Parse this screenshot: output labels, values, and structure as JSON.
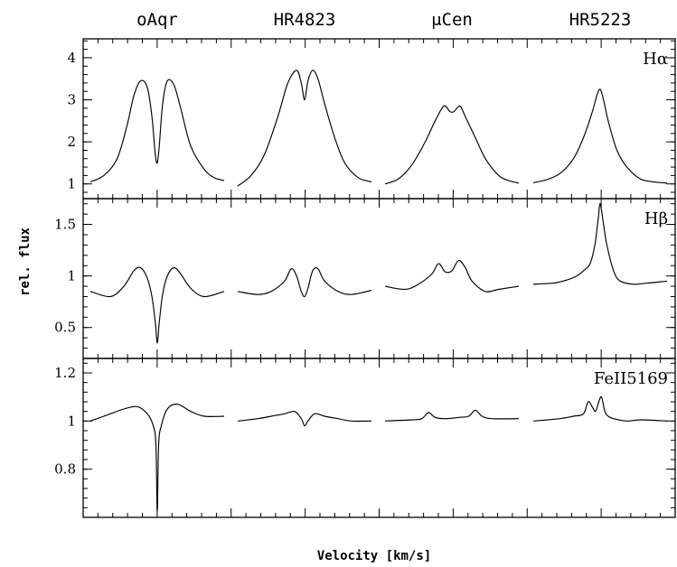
{
  "chart_data": {
    "type": "line",
    "stars": [
      "oAqr",
      "HR4823",
      "μCen",
      "HR5223"
    ],
    "xlabel": "Velocity [km/s]",
    "ylabel": "rel. flux",
    "panels": [
      {
        "line": "Hα",
        "ylim": [
          0.65,
          4.45
        ],
        "yticks": [
          1,
          2,
          3,
          4
        ],
        "tick_labels": [
          "1",
          "2",
          "3",
          "4"
        ],
        "series": [
          {
            "star": "oAqr",
            "x": [
              -1.0,
              -0.8,
              -0.6,
              -0.45,
              -0.35,
              -0.25,
              -0.15,
              -0.08,
              -0.03,
              0.0,
              0.03,
              0.08,
              0.15,
              0.25,
              0.35,
              0.5,
              0.7,
              0.85,
              1.0
            ],
            "y": [
              1.05,
              1.2,
              1.6,
              2.4,
              3.1,
              3.45,
              3.3,
              2.6,
              1.7,
              1.5,
              1.9,
              2.9,
              3.45,
              3.35,
              2.8,
              1.9,
              1.35,
              1.15,
              1.08
            ]
          },
          {
            "star": "HR4823",
            "x": [
              -1.0,
              -0.8,
              -0.6,
              -0.4,
              -0.25,
              -0.12,
              -0.05,
              0.0,
              0.05,
              0.12,
              0.2,
              0.3,
              0.45,
              0.6,
              0.8,
              1.0
            ],
            "y": [
              0.95,
              1.2,
              1.7,
              2.6,
              3.4,
              3.7,
              3.4,
              3.0,
              3.45,
              3.7,
              3.5,
              2.9,
              2.1,
              1.5,
              1.15,
              1.05
            ]
          },
          {
            "star": "μCen",
            "x": [
              -1.0,
              -0.8,
              -0.6,
              -0.4,
              -0.25,
              -0.12,
              -0.03,
              0.03,
              0.12,
              0.2,
              0.35,
              0.5,
              0.7,
              0.85,
              1.0
            ],
            "y": [
              1.0,
              1.12,
              1.45,
              2.0,
              2.5,
              2.85,
              2.72,
              2.72,
              2.85,
              2.6,
              2.1,
              1.6,
              1.2,
              1.08,
              1.02
            ]
          },
          {
            "star": "HR5223",
            "x": [
              -1.0,
              -0.8,
              -0.6,
              -0.4,
              -0.25,
              -0.12,
              -0.05,
              0.0,
              0.05,
              0.12,
              0.25,
              0.4,
              0.6,
              0.8,
              1.0
            ],
            "y": [
              1.03,
              1.1,
              1.25,
              1.6,
              2.1,
              2.7,
              3.1,
              3.25,
              3.0,
              2.5,
              1.8,
              1.4,
              1.12,
              1.05,
              1.02
            ]
          }
        ]
      },
      {
        "line": "Hβ",
        "ylim": [
          0.2,
          1.75
        ],
        "yticks": [
          0.5,
          1,
          1.5
        ],
        "tick_labels": [
          "0.5",
          "1",
          "1.5"
        ],
        "series": [
          {
            "star": "oAqr",
            "x": [
              -1.0,
              -0.7,
              -0.5,
              -0.35,
              -0.25,
              -0.15,
              -0.08,
              -0.03,
              0.0,
              0.03,
              0.08,
              0.15,
              0.25,
              0.35,
              0.5,
              0.7,
              1.0
            ],
            "y": [
              0.85,
              0.8,
              0.9,
              1.05,
              1.08,
              0.98,
              0.8,
              0.55,
              0.35,
              0.55,
              0.82,
              1.0,
              1.08,
              1.02,
              0.88,
              0.8,
              0.85
            ]
          },
          {
            "star": "HR4823",
            "x": [
              -1.0,
              -0.7,
              -0.5,
              -0.3,
              -0.2,
              -0.12,
              -0.05,
              0.0,
              0.05,
              0.12,
              0.2,
              0.3,
              0.5,
              0.7,
              1.0
            ],
            "y": [
              0.85,
              0.82,
              0.85,
              0.95,
              1.07,
              1.0,
              0.85,
              0.8,
              0.88,
              1.05,
              1.07,
              0.95,
              0.85,
              0.82,
              0.86
            ]
          },
          {
            "star": "μCen",
            "x": [
              -1.0,
              -0.7,
              -0.5,
              -0.3,
              -0.2,
              -0.1,
              0.0,
              0.1,
              0.2,
              0.3,
              0.5,
              0.7,
              1.0
            ],
            "y": [
              0.9,
              0.87,
              0.92,
              1.02,
              1.12,
              1.04,
              1.05,
              1.15,
              1.08,
              0.95,
              0.85,
              0.87,
              0.9
            ]
          },
          {
            "star": "HR5223",
            "x": [
              -1.0,
              -0.7,
              -0.5,
              -0.35,
              -0.25,
              -0.15,
              -0.08,
              -0.03,
              0.0,
              0.05,
              0.1,
              0.2,
              0.3,
              0.5,
              0.7,
              1.0
            ],
            "y": [
              0.92,
              0.93,
              0.96,
              1.0,
              1.05,
              1.12,
              1.3,
              1.55,
              1.7,
              1.5,
              1.3,
              1.05,
              0.95,
              0.92,
              0.93,
              0.95
            ]
          }
        ]
      },
      {
        "line": "FeII5169",
        "ylim": [
          0.6,
          1.26
        ],
        "yticks": [
          0.8,
          1,
          1.2
        ],
        "tick_labels": [
          "0.8",
          "1",
          "1.2"
        ],
        "series": [
          {
            "star": "oAqr",
            "x": [
              -1.0,
              -0.7,
              -0.5,
              -0.3,
              -0.15,
              -0.06,
              -0.02,
              0.0,
              0.02,
              0.06,
              0.15,
              0.3,
              0.5,
              0.7,
              1.0
            ],
            "y": [
              1.0,
              1.03,
              1.05,
              1.06,
              1.03,
              0.98,
              0.9,
              0.62,
              0.9,
              0.98,
              1.05,
              1.07,
              1.04,
              1.02,
              1.02
            ]
          },
          {
            "star": "HR4823",
            "x": [
              -1.0,
              -0.7,
              -0.5,
              -0.3,
              -0.15,
              -0.05,
              0.0,
              0.05,
              0.15,
              0.3,
              0.5,
              0.7,
              1.0
            ],
            "y": [
              1.0,
              1.01,
              1.02,
              1.03,
              1.04,
              1.01,
              0.98,
              1.0,
              1.03,
              1.02,
              1.01,
              1.0,
              1.0
            ]
          },
          {
            "star": "μCen",
            "x": [
              -1.0,
              -0.6,
              -0.45,
              -0.35,
              -0.25,
              -0.1,
              0.1,
              0.25,
              0.35,
              0.45,
              0.6,
              1.0
            ],
            "y": [
              1.0,
              1.005,
              1.01,
              1.035,
              1.015,
              1.01,
              1.015,
              1.02,
              1.045,
              1.02,
              1.01,
              1.01
            ]
          },
          {
            "star": "HR5223",
            "x": [
              -1.0,
              -0.6,
              -0.4,
              -0.25,
              -0.18,
              -0.12,
              -0.07,
              -0.02,
              0.02,
              0.07,
              0.12,
              0.2,
              0.4,
              0.6,
              1.0
            ],
            "y": [
              1.0,
              1.01,
              1.02,
              1.03,
              1.08,
              1.06,
              1.04,
              1.08,
              1.1,
              1.04,
              1.02,
              1.01,
              1.0,
              1.005,
              1.0
            ]
          }
        ]
      }
    ]
  }
}
